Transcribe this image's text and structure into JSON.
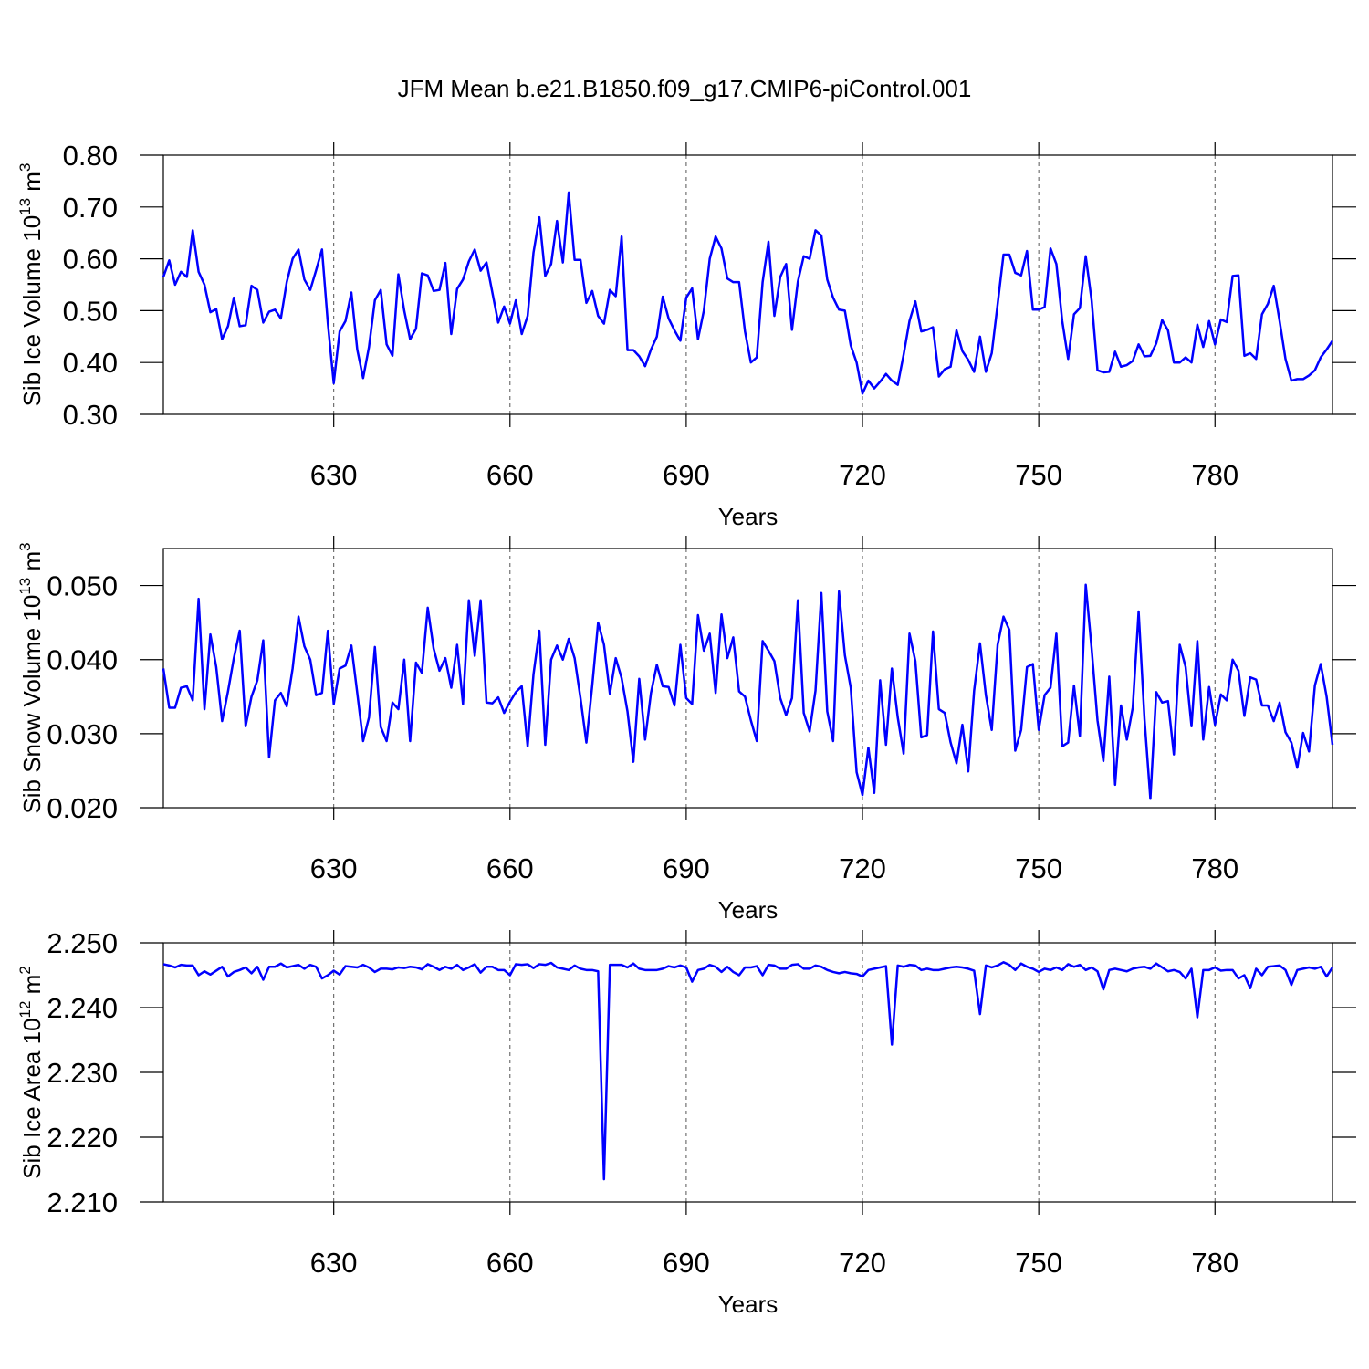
{
  "chart_data": [
    {
      "type": "line",
      "title": "JFM Mean b.e21.B1850.f09_g17.CMIP6-piControl.001",
      "ylabel": "Sib Ice Volume 10",
      "ylabel_exp": "13",
      "ylabel_unit": " m",
      "ylabel_unit_exp": "3",
      "xlabel": "Years",
      "color": "#0000ff",
      "grid": true,
      "xlim": [
        601,
        800
      ],
      "xticks": [
        630,
        660,
        690,
        720,
        750,
        780
      ],
      "ylim": [
        0.3,
        0.8
      ],
      "yticks": [
        {
          "value": 0.3,
          "label": "0.30"
        },
        {
          "value": 0.4,
          "label": "0.40"
        },
        {
          "value": 0.5,
          "label": "0.50"
        },
        {
          "value": 0.6,
          "label": "0.60"
        },
        {
          "value": 0.7,
          "label": "0.70"
        },
        {
          "value": 0.8,
          "label": "0.80"
        }
      ],
      "x": [
        601,
        602,
        603,
        604,
        605,
        606,
        607,
        608,
        609,
        610,
        611,
        612,
        613,
        614,
        615,
        616,
        617,
        618,
        619,
        620,
        621,
        622,
        623,
        624,
        625,
        626,
        627,
        628,
        629,
        630,
        631,
        632,
        633,
        634,
        635,
        636,
        637,
        638,
        639,
        640,
        641,
        642,
        643,
        644,
        645,
        646,
        647,
        648,
        649,
        650,
        651,
        652,
        653,
        654,
        655,
        656,
        657,
        658,
        659,
        660,
        661,
        662,
        663,
        664,
        665,
        666,
        667,
        668,
        669,
        670,
        671,
        672,
        673,
        674,
        675,
        676,
        677,
        678,
        679,
        680,
        681,
        682,
        683,
        684,
        685,
        686,
        687,
        688,
        689,
        690,
        691,
        692,
        693,
        694,
        695,
        696,
        697,
        698,
        699,
        700,
        701,
        702,
        703,
        704,
        705,
        706,
        707,
        708,
        709,
        710,
        711,
        712,
        713,
        714,
        715,
        716,
        717,
        718,
        719,
        720,
        721,
        722,
        723,
        724,
        725,
        726,
        727,
        728,
        729,
        730,
        731,
        732,
        733,
        734,
        735,
        736,
        737,
        738,
        739,
        740,
        741,
        742,
        743,
        744,
        745,
        746,
        747,
        748,
        749,
        750,
        751,
        752,
        753,
        754,
        755,
        756,
        757,
        758,
        759,
        760,
        761,
        762,
        763,
        764,
        765,
        766,
        767,
        768,
        769,
        770,
        771,
        772,
        773,
        774,
        775,
        776,
        777,
        778,
        779,
        780,
        781,
        782,
        783,
        784,
        785,
        786,
        787,
        788,
        789,
        790,
        791,
        792,
        793,
        794,
        795,
        796,
        797,
        798,
        799,
        800
      ],
      "values": [
        0.565,
        0.597,
        0.55,
        0.575,
        0.565,
        0.655,
        0.575,
        0.55,
        0.497,
        0.503,
        0.445,
        0.47,
        0.525,
        0.47,
        0.472,
        0.548,
        0.54,
        0.477,
        0.498,
        0.502,
        0.485,
        0.555,
        0.6,
        0.618,
        0.56,
        0.54,
        0.578,
        0.618,
        0.475,
        0.36,
        0.46,
        0.48,
        0.535,
        0.425,
        0.37,
        0.43,
        0.52,
        0.54,
        0.435,
        0.413,
        0.57,
        0.5,
        0.445,
        0.465,
        0.572,
        0.568,
        0.538,
        0.54,
        0.592,
        0.455,
        0.542,
        0.56,
        0.595,
        0.618,
        0.577,
        0.593,
        0.535,
        0.477,
        0.508,
        0.475,
        0.52,
        0.455,
        0.49,
        0.612,
        0.68,
        0.567,
        0.59,
        0.673,
        0.593,
        0.728,
        0.598,
        0.598,
        0.515,
        0.538,
        0.49,
        0.475,
        0.54,
        0.528,
        0.643,
        0.424,
        0.424,
        0.412,
        0.393,
        0.425,
        0.45,
        0.527,
        0.485,
        0.462,
        0.442,
        0.525,
        0.543,
        0.445,
        0.5,
        0.6,
        0.643,
        0.62,
        0.562,
        0.555,
        0.555,
        0.46,
        0.4,
        0.41,
        0.555,
        0.633,
        0.49,
        0.565,
        0.59,
        0.463,
        0.556,
        0.605,
        0.6,
        0.655,
        0.645,
        0.56,
        0.525,
        0.502,
        0.5,
        0.433,
        0.4,
        0.34,
        0.365,
        0.35,
        0.363,
        0.378,
        0.365,
        0.357,
        0.415,
        0.48,
        0.518,
        0.46,
        0.463,
        0.468,
        0.373,
        0.387,
        0.392,
        0.462,
        0.422,
        0.405,
        0.382,
        0.45,
        0.382,
        0.418,
        0.512,
        0.608,
        0.608,
        0.573,
        0.568,
        0.615,
        0.502,
        0.502,
        0.507,
        0.62,
        0.59,
        0.48,
        0.407,
        0.493,
        0.505,
        0.605,
        0.52,
        0.385,
        0.381,
        0.382,
        0.421,
        0.392,
        0.395,
        0.403,
        0.435,
        0.412,
        0.413,
        0.437,
        0.482,
        0.462,
        0.4,
        0.4,
        0.41,
        0.4,
        0.473,
        0.43,
        0.48,
        0.435,
        0.483,
        0.478,
        0.567,
        0.568,
        0.413,
        0.418,
        0.407,
        0.493,
        0.513,
        0.548,
        0.48,
        0.407,
        0.365,
        0.368,
        0.368,
        0.375,
        0.385,
        0.41,
        0.425,
        0.442
      ]
    },
    {
      "type": "line",
      "ylabel": "Sib Snow Volume 10",
      "ylabel_exp": "13",
      "ylabel_unit": " m",
      "ylabel_unit_exp": "3",
      "xlabel": "Years",
      "color": "#0000ff",
      "grid": true,
      "xlim": [
        601,
        800
      ],
      "xticks": [
        630,
        660,
        690,
        720,
        750,
        780
      ],
      "ylim": [
        0.02,
        0.055
      ],
      "yticks": [
        {
          "value": 0.02,
          "label": "0.020"
        },
        {
          "value": 0.03,
          "label": "0.030"
        },
        {
          "value": 0.04,
          "label": "0.040"
        },
        {
          "value": 0.05,
          "label": "0.050"
        }
      ],
      "x": [
        601,
        602,
        603,
        604,
        605,
        606,
        607,
        608,
        609,
        610,
        611,
        612,
        613,
        614,
        615,
        616,
        617,
        618,
        619,
        620,
        621,
        622,
        623,
        624,
        625,
        626,
        627,
        628,
        629,
        630,
        631,
        632,
        633,
        634,
        635,
        636,
        637,
        638,
        639,
        640,
        641,
        642,
        643,
        644,
        645,
        646,
        647,
        648,
        649,
        650,
        651,
        652,
        653,
        654,
        655,
        656,
        657,
        658,
        659,
        660,
        661,
        662,
        663,
        664,
        665,
        666,
        667,
        668,
        669,
        670,
        671,
        672,
        673,
        674,
        675,
        676,
        677,
        678,
        679,
        680,
        681,
        682,
        683,
        684,
        685,
        686,
        687,
        688,
        689,
        690,
        691,
        692,
        693,
        694,
        695,
        696,
        697,
        698,
        699,
        700,
        701,
        702,
        703,
        704,
        705,
        706,
        707,
        708,
        709,
        710,
        711,
        712,
        713,
        714,
        715,
        716,
        717,
        718,
        719,
        720,
        721,
        722,
        723,
        724,
        725,
        726,
        727,
        728,
        729,
        730,
        731,
        732,
        733,
        734,
        735,
        736,
        737,
        738,
        739,
        740,
        741,
        742,
        743,
        744,
        745,
        746,
        747,
        748,
        749,
        750,
        751,
        752,
        753,
        754,
        755,
        756,
        757,
        758,
        759,
        760,
        761,
        762,
        763,
        764,
        765,
        766,
        767,
        768,
        769,
        770,
        771,
        772,
        773,
        774,
        775,
        776,
        777,
        778,
        779,
        780,
        781,
        782,
        783,
        784,
        785,
        786,
        787,
        788,
        789,
        790,
        791,
        792,
        793,
        794,
        795,
        796,
        797,
        798,
        799,
        800
      ],
      "values": [
        0.0388,
        0.0335,
        0.0335,
        0.0362,
        0.0364,
        0.0345,
        0.0482,
        0.0333,
        0.0434,
        0.039,
        0.0317,
        0.0357,
        0.0402,
        0.0439,
        0.031,
        0.035,
        0.0372,
        0.0426,
        0.0268,
        0.0345,
        0.0355,
        0.0337,
        0.0388,
        0.0458,
        0.0418,
        0.04,
        0.0352,
        0.0355,
        0.0439,
        0.034,
        0.0388,
        0.0392,
        0.0419,
        0.0355,
        0.029,
        0.0322,
        0.0417,
        0.0309,
        0.029,
        0.0342,
        0.0333,
        0.04,
        0.029,
        0.0396,
        0.0382,
        0.047,
        0.0415,
        0.0385,
        0.0402,
        0.0362,
        0.042,
        0.034,
        0.048,
        0.0405,
        0.048,
        0.0342,
        0.0341,
        0.0349,
        0.0328,
        0.0343,
        0.0356,
        0.0364,
        0.0283,
        0.038,
        0.0439,
        0.0285,
        0.04,
        0.0419,
        0.04,
        0.0428,
        0.0402,
        0.0348,
        0.0288,
        0.0365,
        0.045,
        0.042,
        0.0354,
        0.0402,
        0.0375,
        0.033,
        0.0262,
        0.0374,
        0.0292,
        0.0355,
        0.0393,
        0.0364,
        0.0363,
        0.0338,
        0.042,
        0.0348,
        0.034,
        0.046,
        0.0412,
        0.0435,
        0.0355,
        0.0461,
        0.0402,
        0.043,
        0.0357,
        0.035,
        0.0318,
        0.029,
        0.0425,
        0.0412,
        0.0398,
        0.0348,
        0.0325,
        0.0348,
        0.048,
        0.0328,
        0.0303,
        0.0358,
        0.049,
        0.033,
        0.029,
        0.0492,
        0.0406,
        0.0362,
        0.0248,
        0.0217,
        0.0281,
        0.022,
        0.0372,
        0.0285,
        0.0388,
        0.0322,
        0.0273,
        0.0435,
        0.0398,
        0.0295,
        0.0298,
        0.0438,
        0.0333,
        0.0328,
        0.0288,
        0.026,
        0.0312,
        0.0249,
        0.0358,
        0.0422,
        0.0352,
        0.0305,
        0.042,
        0.0458,
        0.044,
        0.0277,
        0.0305,
        0.039,
        0.0394,
        0.0305,
        0.0352,
        0.0362,
        0.0435,
        0.0283,
        0.0288,
        0.0365,
        0.0297,
        0.0501,
        0.0415,
        0.0318,
        0.0263,
        0.0377,
        0.0231,
        0.0338,
        0.0292,
        0.0335,
        0.0465,
        0.032,
        0.0212,
        0.0356,
        0.0342,
        0.0344,
        0.0272,
        0.042,
        0.039,
        0.031,
        0.0425,
        0.0292,
        0.0363,
        0.0312,
        0.0353,
        0.0345,
        0.04,
        0.0385,
        0.0324,
        0.0376,
        0.0373,
        0.0338,
        0.0338,
        0.0317,
        0.0342,
        0.0302,
        0.0288,
        0.0254,
        0.0301,
        0.0276,
        0.0365,
        0.0394,
        0.035,
        0.0285
      ]
    },
    {
      "type": "line",
      "ylabel": "Sib Ice Area 10",
      "ylabel_exp": "12",
      "ylabel_unit": " m",
      "ylabel_unit_exp": "2",
      "xlabel": "Years",
      "color": "#0000ff",
      "grid": true,
      "xlim": [
        601,
        800
      ],
      "xticks": [
        630,
        660,
        690,
        720,
        750,
        780
      ],
      "ylim": [
        2.21,
        2.25
      ],
      "yticks": [
        {
          "value": 2.21,
          "label": "2.210"
        },
        {
          "value": 2.22,
          "label": "2.220"
        },
        {
          "value": 2.23,
          "label": "2.230"
        },
        {
          "value": 2.24,
          "label": "2.240"
        },
        {
          "value": 2.25,
          "label": "2.250"
        }
      ],
      "x": [
        601,
        602,
        603,
        604,
        605,
        606,
        607,
        608,
        609,
        610,
        611,
        612,
        613,
        614,
        615,
        616,
        617,
        618,
        619,
        620,
        621,
        622,
        623,
        624,
        625,
        626,
        627,
        628,
        629,
        630,
        631,
        632,
        633,
        634,
        635,
        636,
        637,
        638,
        639,
        640,
        641,
        642,
        643,
        644,
        645,
        646,
        647,
        648,
        649,
        650,
        651,
        652,
        653,
        654,
        655,
        656,
        657,
        658,
        659,
        660,
        661,
        662,
        663,
        664,
        665,
        666,
        667,
        668,
        669,
        670,
        671,
        672,
        673,
        674,
        675,
        676,
        677,
        678,
        679,
        680,
        681,
        682,
        683,
        684,
        685,
        686,
        687,
        688,
        689,
        690,
        691,
        692,
        693,
        694,
        695,
        696,
        697,
        698,
        699,
        700,
        701,
        702,
        703,
        704,
        705,
        706,
        707,
        708,
        709,
        710,
        711,
        712,
        713,
        714,
        715,
        716,
        717,
        718,
        719,
        720,
        721,
        722,
        723,
        724,
        725,
        726,
        727,
        728,
        729,
        730,
        731,
        732,
        733,
        734,
        735,
        736,
        737,
        738,
        739,
        740,
        741,
        742,
        743,
        744,
        745,
        746,
        747,
        748,
        749,
        750,
        751,
        752,
        753,
        754,
        755,
        756,
        757,
        758,
        759,
        760,
        761,
        762,
        763,
        764,
        765,
        766,
        767,
        768,
        769,
        770,
        771,
        772,
        773,
        774,
        775,
        776,
        777,
        778,
        779,
        780,
        781,
        782,
        783,
        784,
        785,
        786,
        787,
        788,
        789,
        790,
        791,
        792,
        793,
        794,
        795,
        796,
        797,
        798,
        799,
        800
      ],
      "values": [
        2.2467,
        2.2465,
        2.2462,
        2.2466,
        2.2465,
        2.2465,
        2.245,
        2.2456,
        2.2451,
        2.2457,
        2.2463,
        2.2448,
        2.2455,
        2.2458,
        2.2462,
        2.2453,
        2.2463,
        2.2443,
        2.2463,
        2.2463,
        2.2468,
        2.2462,
        2.2464,
        2.2466,
        2.246,
        2.2466,
        2.2463,
        2.2445,
        2.245,
        2.2457,
        2.2451,
        2.2464,
        2.2463,
        2.2462,
        2.2466,
        2.2462,
        2.2455,
        2.246,
        2.246,
        2.2459,
        2.2462,
        2.2461,
        2.2463,
        2.2462,
        2.2459,
        2.2467,
        2.2463,
        2.2458,
        2.2463,
        2.246,
        2.2466,
        2.2458,
        2.2462,
        2.2467,
        2.2454,
        2.2463,
        2.2463,
        2.2458,
        2.2458,
        2.245,
        2.2467,
        2.2466,
        2.2467,
        2.2461,
        2.2467,
        2.2466,
        2.2469,
        2.2462,
        2.246,
        2.2458,
        2.2465,
        2.246,
        2.2458,
        2.2458,
        2.2456,
        2.2135,
        2.2466,
        2.2466,
        2.2466,
        2.2462,
        2.2468,
        2.246,
        2.2458,
        2.2458,
        2.2458,
        2.246,
        2.2464,
        2.2462,
        2.2465,
        2.2462,
        2.244,
        2.2458,
        2.246,
        2.2466,
        2.2463,
        2.2455,
        2.2463,
        2.2455,
        2.245,
        2.2462,
        2.2462,
        2.2464,
        2.245,
        2.2466,
        2.2465,
        2.246,
        2.246,
        2.2466,
        2.2467,
        2.246,
        2.246,
        2.2465,
        2.2463,
        2.2458,
        2.2455,
        2.2453,
        2.2455,
        2.2453,
        2.2452,
        2.2448,
        2.2458,
        2.246,
        2.2462,
        2.2464,
        2.2343,
        2.2465,
        2.2463,
        2.2466,
        2.2465,
        2.2458,
        2.246,
        2.2458,
        2.2458,
        2.246,
        2.2462,
        2.2463,
        2.2462,
        2.246,
        2.2457,
        2.239,
        2.2465,
        2.2462,
        2.2465,
        2.247,
        2.2466,
        2.2458,
        2.2468,
        2.2463,
        2.246,
        2.2455,
        2.246,
        2.2458,
        2.2462,
        2.2458,
        2.2467,
        2.2463,
        2.2466,
        2.2458,
        2.2462,
        2.2456,
        2.2428,
        2.2458,
        2.246,
        2.2458,
        2.2456,
        2.246,
        2.2462,
        2.2463,
        2.246,
        2.2468,
        2.2462,
        2.2456,
        2.2458,
        2.2455,
        2.2445,
        2.246,
        2.2385,
        2.2458,
        2.2458,
        2.2462,
        2.2457,
        2.2458,
        2.2458,
        2.2445,
        2.245,
        2.243,
        2.246,
        2.245,
        2.2463,
        2.2464,
        2.2465,
        2.2458,
        2.2435,
        2.2458,
        2.246,
        2.2462,
        2.246,
        2.2463,
        2.2448,
        2.2462
      ]
    }
  ]
}
